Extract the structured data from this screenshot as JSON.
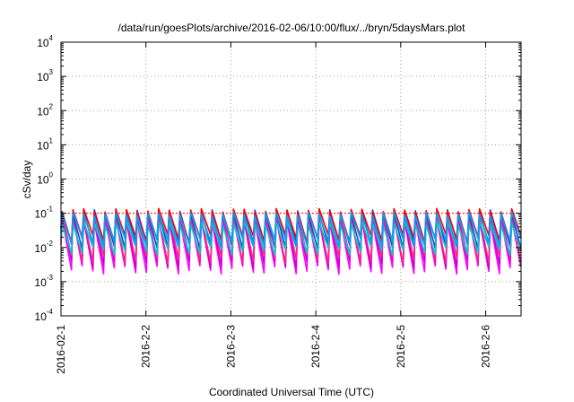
{
  "chart_data": {
    "type": "line",
    "title": "/data/run/goesPlots/archive/2016-02-06/10:00/flux/../bryn/5daysMars.plot",
    "xlabel": "Coordinated Universal Time (UTC)",
    "ylabel": "cSv/day",
    "yscale": "log",
    "ylim": [
      0.0001,
      10000
    ],
    "xlim": [
      "2016-02-01",
      "2016-02-06 10:00"
    ],
    "grid": true,
    "y_ticks": [
      {
        "base": "10",
        "exp": "-4"
      },
      {
        "base": "10",
        "exp": "-3"
      },
      {
        "base": "10",
        "exp": "-2"
      },
      {
        "base": "10",
        "exp": "-1"
      },
      {
        "base": "10",
        "exp": "0"
      },
      {
        "base": "10",
        "exp": "1"
      },
      {
        "base": "10",
        "exp": "2"
      },
      {
        "base": "10",
        "exp": "3"
      },
      {
        "base": "10",
        "exp": "4"
      }
    ],
    "x_ticks": [
      "2016-02-1",
      "2016-2-2",
      "2016-2-3",
      "2016-2-4",
      "2016-2-5",
      "2016-2-6"
    ],
    "reference_line": {
      "value": 0.1,
      "color": "#ff0000"
    },
    "cycles_per_day": 8,
    "series_envelopes": [
      {
        "color": "#ff00ff",
        "peak": 0.065,
        "trough": 0.0022
      },
      {
        "color": "#cc00cc",
        "peak": 0.075,
        "trough": 0.0032
      },
      {
        "color": "#ff2288",
        "peak": 0.085,
        "trough": 0.0045
      },
      {
        "color": "#2244cc",
        "peak": 0.11,
        "trough": 0.012
      },
      {
        "color": "#00cccc",
        "peak": 0.05,
        "trough": 0.008
      },
      {
        "color": "#ff0000",
        "peak": 0.12,
        "trough": 0.018
      },
      {
        "color": "#00a0ff",
        "peak": 0.095,
        "trough": 0.014
      }
    ]
  }
}
